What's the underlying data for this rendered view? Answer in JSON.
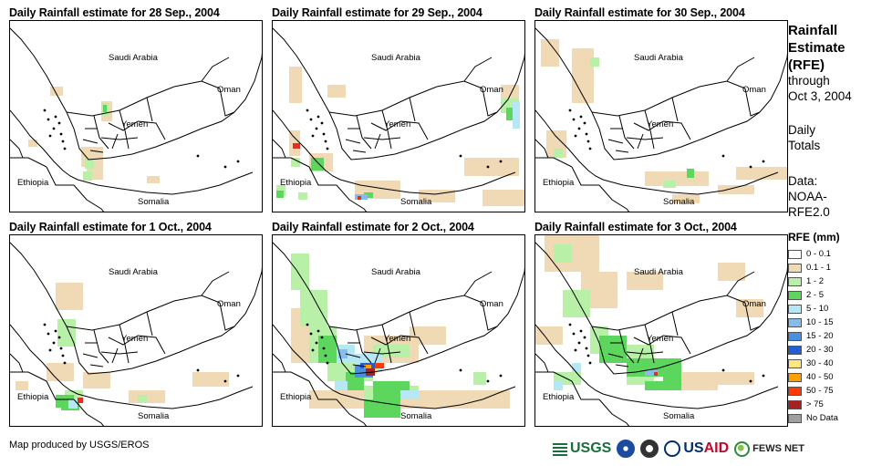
{
  "panels": [
    {
      "title": "Daily Rainfall estimate for 28 Sep., 2004",
      "rain": [
        {
          "c": "c1",
          "r": [
            [
              44,
              72,
              14,
              10
            ],
            [
              100,
              88,
              12,
              22
            ],
            [
              78,
              138,
              24,
              22
            ],
            [
              84,
              160,
              18,
              14
            ],
            [
              20,
              130,
              10,
              8
            ],
            [
              150,
              170,
              14,
              8
            ]
          ]
        },
        {
          "c": "c2",
          "r": [
            [
              100,
              90,
              8,
              14
            ],
            [
              82,
              150,
              10,
              12
            ],
            [
              80,
              165,
              10,
              10
            ]
          ]
        },
        {
          "c": "c3",
          "r": [
            [
              102,
              92,
              4,
              8
            ]
          ]
        }
      ]
    },
    {
      "title": "Daily Rainfall estimate for 29 Sep., 2004",
      "rain": [
        {
          "c": "c1",
          "r": [
            [
              18,
              50,
              14,
              40
            ],
            [
              60,
              70,
              20,
              14
            ],
            [
              18,
              120,
              12,
              28
            ],
            [
              40,
              145,
              26,
              20
            ],
            [
              90,
              175,
              50,
              20
            ],
            [
              160,
              185,
              40,
              14
            ],
            [
              210,
              150,
              60,
              20
            ],
            [
              230,
              185,
              50,
              18
            ],
            [
              250,
              70,
              20,
              24
            ]
          ]
        },
        {
          "c": "c2",
          "r": [
            [
              4,
              180,
              10,
              12
            ],
            [
              20,
              150,
              10,
              10
            ],
            [
              250,
              85,
              20,
              16
            ],
            [
              28,
              188,
              10,
              8
            ]
          ]
        },
        {
          "c": "c3",
          "r": [
            [
              42,
              150,
              14,
              14
            ],
            [
              256,
              95,
              14,
              14
            ],
            [
              4,
              186,
              8,
              8
            ],
            [
              100,
              188,
              10,
              6
            ]
          ]
        },
        {
          "c": "c4",
          "r": [
            [
              263,
              88,
              8,
              30
            ]
          ]
        },
        {
          "c": "c5",
          "r": [
            [
              90,
              190,
              14,
              6
            ]
          ]
        },
        {
          "c": "c12",
          "r": [
            [
              22,
              134,
              8,
              6
            ],
            [
              93,
              192,
              4,
              4
            ]
          ]
        }
      ]
    },
    {
      "title": "Daily Rainfall estimate for 30 Sep., 2004",
      "rain": [
        {
          "c": "c1",
          "r": [
            [
              40,
              30,
              24,
              60
            ],
            [
              6,
              20,
              20,
              30
            ],
            [
              12,
              120,
              22,
              30
            ],
            [
              120,
              165,
              70,
              16
            ],
            [
              220,
              160,
              60,
              14
            ],
            [
              150,
              190,
              30,
              10
            ],
            [
              200,
              180,
              40,
              10
            ]
          ]
        },
        {
          "c": "c2",
          "r": [
            [
              60,
              40,
              10,
              10
            ],
            [
              20,
              140,
              10,
              10
            ],
            [
              140,
              175,
              14,
              8
            ]
          ]
        },
        {
          "c": "c3",
          "r": [
            [
              166,
              162,
              8,
              10
            ]
          ]
        }
      ]
    },
    {
      "title": "Daily Rainfall estimate for 1 Oct., 2004",
      "rain": [
        {
          "c": "c1",
          "r": [
            [
              50,
              52,
              30,
              30
            ],
            [
              40,
              140,
              30,
              20
            ],
            [
              80,
              150,
              30,
              18
            ],
            [
              130,
              170,
              40,
              14
            ],
            [
              200,
              150,
              40,
              16
            ],
            [
              6,
              160,
              14,
              10
            ]
          ]
        },
        {
          "c": "c2",
          "r": [
            [
              52,
              92,
              20,
              30
            ],
            [
              60,
              170,
              20,
              14
            ],
            [
              140,
              175,
              10,
              8
            ]
          ]
        },
        {
          "c": "c3",
          "r": [
            [
              50,
              175,
              20,
              14
            ],
            [
              56,
              182,
              20,
              10
            ]
          ]
        },
        {
          "c": "c4",
          "r": [
            [
              64,
              180,
              10,
              10
            ]
          ]
        },
        {
          "c": "c12",
          "r": [
            [
              74,
              178,
              6,
              6
            ]
          ]
        }
      ]
    },
    {
      "title": "Daily Rainfall estimate for 2 Oct., 2004",
      "rain": [
        {
          "c": "c1",
          "r": [
            [
              20,
              80,
              40,
              60
            ],
            [
              100,
              110,
              60,
              30
            ],
            [
              40,
              170,
              220,
              20
            ],
            [
              180,
              175,
              80,
              14
            ],
            [
              150,
              100,
              40,
              20
            ]
          ]
        },
        {
          "c": "c2",
          "r": [
            [
              20,
              20,
              20,
              40
            ],
            [
              30,
              60,
              30,
              40
            ],
            [
              40,
              100,
              30,
              40
            ],
            [
              60,
              140,
              50,
              20
            ],
            [
              110,
              120,
              40,
              14
            ],
            [
              100,
              165,
              60,
              14
            ],
            [
              220,
              150,
              14,
              14
            ]
          ]
        },
        {
          "c": "c3",
          "r": [
            [
              50,
              110,
              20,
              30
            ],
            [
              80,
              150,
              20,
              20
            ],
            [
              110,
              160,
              40,
              20
            ],
            [
              100,
              180,
              40,
              20
            ]
          ]
        },
        {
          "c": "c4",
          "r": [
            [
              70,
              120,
              20,
              20
            ],
            [
              90,
              130,
              30,
              20
            ],
            [
              140,
              170,
              20,
              10
            ],
            [
              68,
              160,
              14,
              10
            ]
          ]
        },
        {
          "c": "c5",
          "r": [
            [
              72,
              125,
              10,
              10
            ],
            [
              100,
              140,
              10,
              10
            ]
          ]
        },
        {
          "c": "c6",
          "r": [
            [
              90,
              142,
              20,
              14
            ]
          ]
        },
        {
          "c": "c7",
          "r": [
            [
              96,
              140,
              18,
              6
            ]
          ]
        },
        {
          "c": "c8",
          "r": [
            [
              108,
              146,
              6,
              6
            ]
          ]
        },
        {
          "c": "c9",
          "r": [
            [
              100,
              142,
              8,
              4
            ]
          ]
        },
        {
          "c": "c10",
          "r": [
            [
              112,
              140,
              10,
              6
            ]
          ]
        },
        {
          "c": "c11",
          "r": [
            [
              102,
              146,
              10,
              8
            ]
          ]
        }
      ]
    },
    {
      "title": "Daily Rainfall estimate for 3 Oct., 2004",
      "rain": [
        {
          "c": "c1",
          "r": [
            [
              10,
              0,
              60,
              40
            ],
            [
              50,
              40,
              40,
              40
            ],
            [
              100,
              40,
              40,
              20
            ],
            [
              200,
              30,
              30,
              20
            ],
            [
              220,
              70,
              30,
              20
            ],
            [
              0,
              100,
              30,
              20
            ],
            [
              150,
              150,
              50,
              20
            ],
            [
              200,
              150,
              40,
              14
            ]
          ]
        },
        {
          "c": "c2",
          "r": [
            [
              20,
              10,
              20,
              20
            ],
            [
              30,
              60,
              30,
              30
            ],
            [
              60,
              100,
              20,
              30
            ],
            [
              90,
              120,
              40,
              20
            ],
            [
              100,
              150,
              30,
              14
            ],
            [
              20,
              150,
              30,
              14
            ]
          ]
        },
        {
          "c": "c3",
          "r": [
            [
              70,
              110,
              30,
              30
            ],
            [
              100,
              135,
              60,
              20
            ],
            [
              120,
              160,
              30,
              10
            ],
            [
              140,
              150,
              20,
              20
            ]
          ]
        },
        {
          "c": "c4",
          "r": [
            [
              20,
              160,
              10,
              10
            ],
            [
              40,
              140,
              10,
              10
            ]
          ]
        },
        {
          "c": "c5",
          "r": [
            [
              120,
              148,
              14,
              6
            ]
          ]
        },
        {
          "c": "c12",
          "r": [
            [
              130,
              150,
              4,
              4
            ]
          ]
        }
      ]
    }
  ],
  "labels": {
    "saudi_arabia": "Saudi Arabia",
    "oman": "Oman",
    "yemen": "Yemen",
    "ethiopia": "Ethiopia",
    "somalia": "Somalia"
  },
  "side": {
    "title_line1": "Rainfall",
    "title_line2": "Estimate",
    "title_line3": "(RFE)",
    "through": "through",
    "date": "Oct 3, 2004",
    "daily": "Daily",
    "totals": "Totals",
    "data_label": "Data:",
    "data_line2": "NOAA-",
    "data_line3": "RFE2.0"
  },
  "legend": {
    "title": "RFE (mm)",
    "items": [
      {
        "label": "0 - 0.1",
        "color": "#ffffff"
      },
      {
        "label": "0.1 - 1",
        "color": "#f0d9b5"
      },
      {
        "label": "1 - 2",
        "color": "#b8f0a8"
      },
      {
        "label": "2 - 5",
        "color": "#5cd65c"
      },
      {
        "label": "5 - 10",
        "color": "#b5e7f5"
      },
      {
        "label": "10 - 15",
        "color": "#87bdea"
      },
      {
        "label": "15 - 20",
        "color": "#4a90e2"
      },
      {
        "label": "20 - 30",
        "color": "#1f5fd1"
      },
      {
        "label": "30 - 40",
        "color": "#ffe680"
      },
      {
        "label": "40 - 50",
        "color": "#ff9f00"
      },
      {
        "label": "50 - 75",
        "color": "#ff3a00"
      },
      {
        "label": "> 75",
        "color": "#a82020"
      },
      {
        "label": "No Data",
        "color": "#a0a0a0"
      }
    ]
  },
  "rain_colors": {
    "c1": "#f0d9b5",
    "c2": "#b8f0a8",
    "c3": "#5cd65c",
    "c4": "#b5e7f5",
    "c5": "#87bdea",
    "c6": "#4a90e2",
    "c7": "#1f5fd1",
    "c8": "#ffe680",
    "c9": "#ff9f00",
    "c10": "#ff3a00",
    "c11": "#a82020",
    "c12": "#e03020"
  },
  "credit": "Map produced by USGS/EROS",
  "logos": {
    "usgs": "USGS",
    "usaid_us": "US",
    "usaid_aid": "AID",
    "fews": "FEWS NET"
  }
}
